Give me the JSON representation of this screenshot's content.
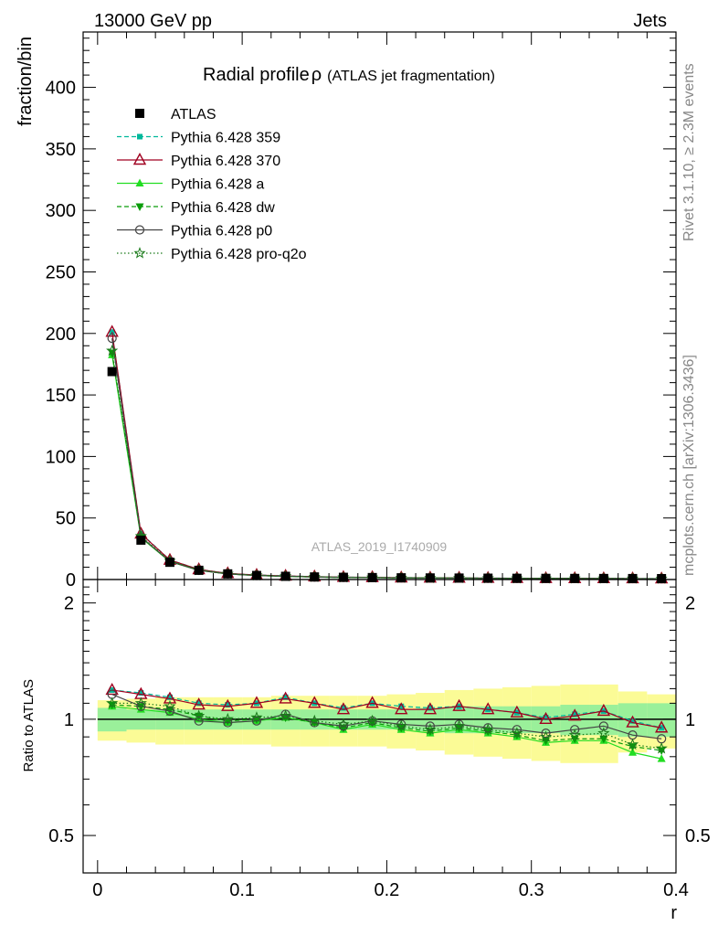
{
  "header": {
    "left": "13000 GeV pp",
    "right": "Jets"
  },
  "side_labels": {
    "rivet": "Rivet 3.1.10, ≥ 2.3M events",
    "mcplots": "mcplots.cern.ch [arXiv:1306.3436]"
  },
  "chart_data": {
    "type": "scatter",
    "title": "Radial profile",
    "title_symbol": "ρ",
    "title_note": "(ATLAS jet fragmentation)",
    "watermark": "ATLAS_2019_I1740909",
    "xlabel": "r",
    "ylabel": "fraction/bin",
    "ratio_ylabel": "Ratio to ATLAS",
    "xlim": [
      -0.01,
      0.4
    ],
    "ylim": [
      0,
      445
    ],
    "ratio_ylim": [
      0.4,
      2.3
    ],
    "ratio_log": true,
    "x_ticks": [
      "0",
      "0.1",
      "0.2",
      "0.3",
      "0.4"
    ],
    "y_ticks": [
      "0",
      "50",
      "100",
      "150",
      "200",
      "250",
      "300",
      "350",
      "400"
    ],
    "ratio_ticks": [
      "0.5",
      "1",
      "2"
    ],
    "legend_position": "top-left",
    "x": [
      0.01,
      0.03,
      0.05,
      0.07,
      0.09,
      0.11,
      0.13,
      0.15,
      0.17,
      0.19,
      0.21,
      0.23,
      0.25,
      0.27,
      0.29,
      0.31,
      0.33,
      0.35,
      0.37,
      0.39
    ],
    "x_bins": [
      0,
      0.02,
      0.04,
      0.06,
      0.08,
      0.1,
      0.12,
      0.14,
      0.16,
      0.18,
      0.2,
      0.22,
      0.24,
      0.26,
      0.28,
      0.3,
      0.32,
      0.34,
      0.36,
      0.38,
      0.4
    ],
    "data": {
      "name": "ATLAS",
      "values": [
        169,
        32,
        14,
        7.5,
        4.6,
        3.3,
        2.6,
        2.1,
        1.8,
        1.6,
        1.4,
        1.3,
        1.2,
        1.1,
        1.0,
        0.95,
        0.9,
        0.85,
        0.8,
        0.75
      ],
      "band_inner": [
        0.07,
        0.06,
        0.06,
        0.06,
        0.06,
        0.06,
        0.06,
        0.06,
        0.06,
        0.06,
        0.06,
        0.07,
        0.08,
        0.08,
        0.08,
        0.08,
        0.09,
        0.09,
        0.1,
        0.1
      ],
      "band_outer": [
        0.12,
        0.13,
        0.14,
        0.14,
        0.14,
        0.14,
        0.15,
        0.15,
        0.15,
        0.15,
        0.16,
        0.17,
        0.19,
        0.2,
        0.21,
        0.22,
        0.23,
        0.23,
        0.18,
        0.16
      ],
      "color": "#000000",
      "band_inner_color": "#9af09a",
      "band_outer_color": "#fbfb96"
    },
    "series": [
      {
        "name": "Pythia 6.428 359",
        "color": "#00b89b",
        "dash": "5,3",
        "marker": "square-small",
        "ratio": [
          1.19,
          1.17,
          1.14,
          1.1,
          1.09,
          1.1,
          1.14,
          1.1,
          1.07,
          1.1,
          1.08,
          1.07,
          1.08,
          1.06,
          1.04,
          1.01,
          1.03,
          1.05,
          0.99,
          0.95
        ]
      },
      {
        "name": "Pythia 6.428 370",
        "color": "#a00020",
        "dash": "",
        "marker": "triangle-open",
        "ratio": [
          1.19,
          1.16,
          1.13,
          1.09,
          1.08,
          1.1,
          1.13,
          1.1,
          1.06,
          1.1,
          1.06,
          1.06,
          1.08,
          1.06,
          1.04,
          1.0,
          1.02,
          1.05,
          0.98,
          0.95
        ]
      },
      {
        "name": "Pythia 6.428 a",
        "color": "#22dd22",
        "dash": "",
        "marker": "triangle",
        "ratio": [
          1.08,
          1.06,
          1.04,
          1.0,
          0.98,
          0.99,
          1.01,
          0.98,
          0.94,
          0.97,
          0.94,
          0.92,
          0.94,
          0.92,
          0.9,
          0.87,
          0.88,
          0.88,
          0.82,
          0.79
        ]
      },
      {
        "name": "Pythia 6.428 dw",
        "color": "#0a9c0a",
        "dash": "5,3",
        "marker": "triangle-down",
        "ratio": [
          1.09,
          1.08,
          1.06,
          1.02,
          0.99,
          1.0,
          1.01,
          0.98,
          0.95,
          0.98,
          0.95,
          0.93,
          0.95,
          0.93,
          0.91,
          0.88,
          0.89,
          0.89,
          0.85,
          0.83
        ]
      },
      {
        "name": "Pythia 6.428 p0",
        "color": "#444444",
        "dash": "",
        "marker": "circle-open",
        "ratio": [
          1.16,
          1.08,
          1.05,
          0.99,
          0.98,
          0.99,
          1.03,
          0.98,
          0.96,
          0.99,
          0.97,
          0.96,
          0.97,
          0.95,
          0.94,
          0.92,
          0.94,
          0.96,
          0.91,
          0.89
        ]
      },
      {
        "name": "Pythia 6.428 pro-q2o",
        "color": "#1a7a1a",
        "dash": "1.5,2.5",
        "marker": "star-open",
        "ratio": [
          1.1,
          1.1,
          1.08,
          1.02,
          1.0,
          1.01,
          1.02,
          0.99,
          0.97,
          0.99,
          0.96,
          0.94,
          0.96,
          0.94,
          0.92,
          0.9,
          0.91,
          0.92,
          0.86,
          0.84
        ]
      }
    ]
  }
}
